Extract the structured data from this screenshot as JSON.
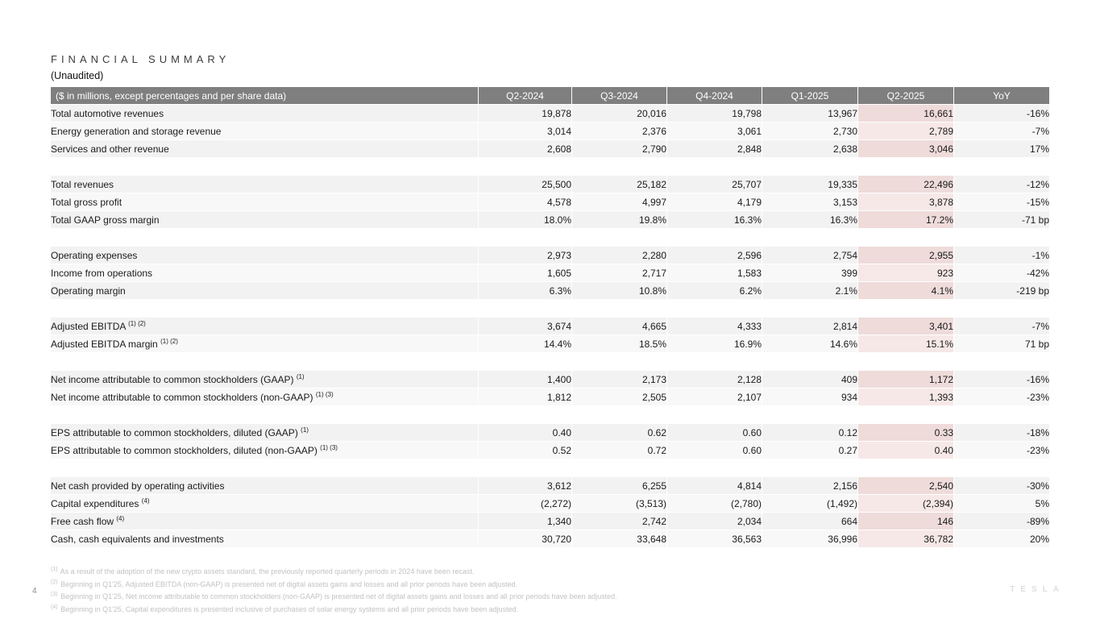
{
  "header": {
    "title": "FINANCIAL SUMMARY",
    "subtitle": "(Unaudited)"
  },
  "table": {
    "label_header": "($ in millions, except percentages and per share data)",
    "columns": [
      "Q2-2024",
      "Q3-2024",
      "Q4-2024",
      "Q1-2025",
      "Q2-2025",
      "YoY"
    ],
    "highlight_column": "Q2-2025",
    "groups": [
      {
        "rows": [
          {
            "label": "Total automotive revenues",
            "sup": "",
            "values": [
              "19,878",
              "20,016",
              "19,798",
              "13,967",
              "16,661",
              "-16%"
            ]
          },
          {
            "label": "Energy generation and storage revenue",
            "sup": "",
            "values": [
              "3,014",
              "2,376",
              "3,061",
              "2,730",
              "2,789",
              "-7%"
            ]
          },
          {
            "label": "Services and other revenue",
            "sup": "",
            "values": [
              "2,608",
              "2,790",
              "2,848",
              "2,638",
              "3,046",
              "17%"
            ]
          }
        ]
      },
      {
        "rows": [
          {
            "label": "Total revenues",
            "sup": "",
            "values": [
              "25,500",
              "25,182",
              "25,707",
              "19,335",
              "22,496",
              "-12%"
            ]
          },
          {
            "label": "Total gross profit",
            "sup": "",
            "values": [
              "4,578",
              "4,997",
              "4,179",
              "3,153",
              "3,878",
              "-15%"
            ]
          },
          {
            "label": "Total GAAP gross margin",
            "sup": "",
            "values": [
              "18.0%",
              "19.8%",
              "16.3%",
              "16.3%",
              "17.2%",
              "-71 bp"
            ]
          }
        ]
      },
      {
        "rows": [
          {
            "label": "Operating expenses",
            "sup": "",
            "values": [
              "2,973",
              "2,280",
              "2,596",
              "2,754",
              "2,955",
              "-1%"
            ]
          },
          {
            "label": "Income from operations",
            "sup": "",
            "values": [
              "1,605",
              "2,717",
              "1,583",
              "399",
              "923",
              "-42%"
            ]
          },
          {
            "label": "Operating margin",
            "sup": "",
            "values": [
              "6.3%",
              "10.8%",
              "6.2%",
              "2.1%",
              "4.1%",
              "-219 bp"
            ]
          }
        ]
      },
      {
        "rows": [
          {
            "label": "Adjusted EBITDA",
            "sup": "(1) (2)",
            "values": [
              "3,674",
              "4,665",
              "4,333",
              "2,814",
              "3,401",
              "-7%"
            ]
          },
          {
            "label": "Adjusted EBITDA margin",
            "sup": "(1) (2)",
            "values": [
              "14.4%",
              "18.5%",
              "16.9%",
              "14.6%",
              "15.1%",
              "71 bp"
            ]
          }
        ]
      },
      {
        "rows": [
          {
            "label": "Net income attributable to common stockholders (GAAP)",
            "sup": "(1)",
            "values": [
              "1,400",
              "2,173",
              "2,128",
              "409",
              "1,172",
              "-16%"
            ]
          },
          {
            "label": "Net income attributable to common stockholders (non-GAAP)",
            "sup": "(1) (3)",
            "values": [
              "1,812",
              "2,505",
              "2,107",
              "934",
              "1,393",
              "-23%"
            ]
          }
        ]
      },
      {
        "rows": [
          {
            "label": "EPS attributable to common stockholders, diluted (GAAP)",
            "sup": "(1)",
            "values": [
              "0.40",
              "0.62",
              "0.60",
              "0.12",
              "0.33",
              "-18%"
            ]
          },
          {
            "label": "EPS attributable to common stockholders, diluted (non-GAAP)",
            "sup": "(1) (3)",
            "values": [
              "0.52",
              "0.72",
              "0.60",
              "0.27",
              "0.40",
              "-23%"
            ]
          }
        ]
      },
      {
        "rows": [
          {
            "label": "Net cash provided by operating activities",
            "sup": "",
            "values": [
              "3,612",
              "6,255",
              "4,814",
              "2,156",
              "2,540",
              "-30%"
            ]
          },
          {
            "label": "Capital expenditures",
            "sup": "(4)",
            "values": [
              "(2,272)",
              "(3,513)",
              "(2,780)",
              "(1,492)",
              "(2,394)",
              "5%"
            ]
          },
          {
            "label": "Free cash flow",
            "sup": "(4)",
            "values": [
              "1,340",
              "2,742",
              "2,034",
              "664",
              "146",
              "-89%"
            ]
          },
          {
            "label": "Cash, cash equivalents and investments",
            "sup": "",
            "values": [
              "30,720",
              "33,648",
              "36,563",
              "36,996",
              "36,782",
              "20%"
            ]
          }
        ]
      }
    ]
  },
  "footnotes": [
    {
      "marker": "(1)",
      "text": "As a result of the adoption of the new crypto assets standard, the previously reported quarterly periods in 2024 have been recast."
    },
    {
      "marker": "(2)",
      "text": "Beginning in Q1'25, Adjusted EBITDA (non-GAAP) is presented net of digital assets gains and losses and all prior periods have been adjusted."
    },
    {
      "marker": "(3)",
      "text": "Beginning in Q1'25, Net income attributable to common stockholders (non-GAAP) is presented net of digital assets gains and losses and all prior periods have been adjusted."
    },
    {
      "marker": "(4)",
      "text": "Beginning in Q1'25, Capital expenditures is presented inclusive of purchases of solar energy systems and all prior periods have been adjusted."
    }
  ],
  "footer": {
    "page_number": "4",
    "brand": "TESLA"
  },
  "colors": {
    "header_bg": "#7f7f7f",
    "stripe": "#f2f2f2",
    "stripe_alt": "#f8f8f8",
    "highlight": "#eedbda",
    "highlight_alt": "#f6e8e7"
  }
}
